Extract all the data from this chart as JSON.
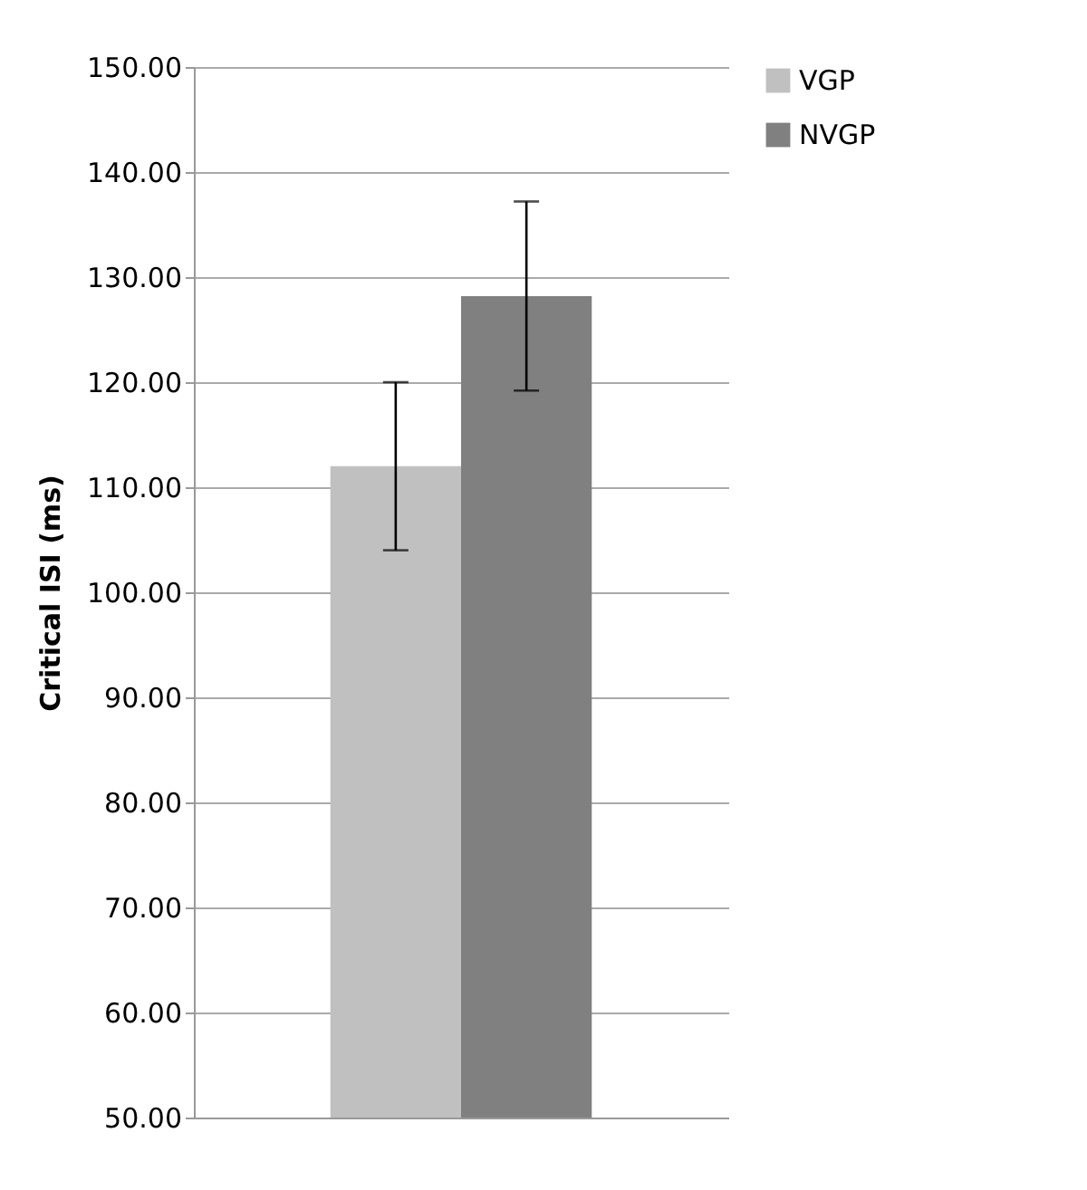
{
  "chart_data": {
    "type": "bar",
    "categories": [
      null
    ],
    "ylabel": "Critical ISI (ms)",
    "series": [
      {
        "name": "VGP",
        "color": "#c0c0c0",
        "values": [
          112
        ],
        "errors": [
          8
        ]
      },
      {
        "name": "NVGP",
        "color": "#808080",
        "values": [
          128.2
        ],
        "errors": [
          9
        ]
      }
    ],
    "ylim": [
      50,
      150
    ],
    "yticks": [
      {
        "value": 50,
        "label": "50.00"
      },
      {
        "value": 60,
        "label": "60.00"
      },
      {
        "value": 70,
        "label": "70.00"
      },
      {
        "value": 80,
        "label": "80.00"
      },
      {
        "value": 90,
        "label": "90.00"
      },
      {
        "value": 100,
        "label": "100.00"
      },
      {
        "value": 110,
        "label": "110.00"
      },
      {
        "value": 120,
        "label": "120.00"
      },
      {
        "value": 130,
        "label": "130.00"
      },
      {
        "value": 140,
        "label": "140.00"
      },
      {
        "value": 150,
        "label": "150.00"
      }
    ],
    "grid": "y",
    "legend": "right",
    "tick_labels": "y"
  }
}
